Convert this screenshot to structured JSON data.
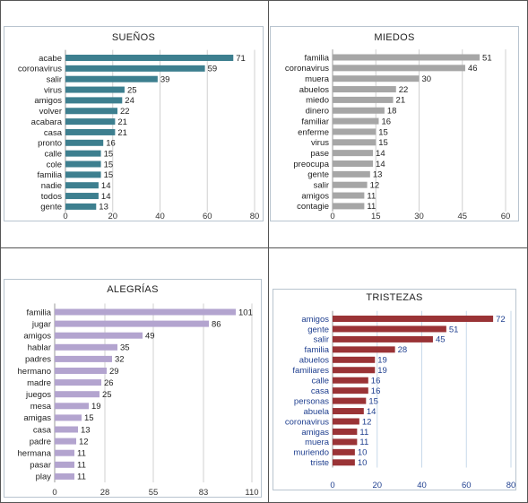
{
  "chart_data": [
    {
      "type": "bar",
      "orientation": "horizontal",
      "title": "SUEÑOS",
      "color": "#3d7f8f",
      "categories": [
        "acabe",
        "coronavirus",
        "salir",
        "virus",
        "amigos",
        "volver",
        "acabara",
        "casa",
        "pronto",
        "calle",
        "cole",
        "familia",
        "nadie",
        "todos",
        "gente"
      ],
      "values": [
        71,
        59,
        39,
        25,
        24,
        22,
        21,
        21,
        16,
        15,
        15,
        15,
        14,
        14,
        13
      ],
      "xlim": [
        0,
        80
      ],
      "ticks": [
        0,
        20,
        40,
        60,
        80
      ],
      "grid": true
    },
    {
      "type": "bar",
      "orientation": "horizontal",
      "title": "MIEDOS",
      "color": "#a6a6a6",
      "categories": [
        "familia",
        "coronavirus",
        "muera",
        "abuelos",
        "miedo",
        "dinero",
        "familiar",
        "enferme",
        "virus",
        "pase",
        "preocupa",
        "gente",
        "salir",
        "amigos",
        "contagie"
      ],
      "values": [
        51,
        46,
        30,
        22,
        21,
        18,
        16,
        15,
        15,
        14,
        14,
        13,
        12,
        11,
        11
      ],
      "xlim": [
        0,
        60
      ],
      "ticks": [
        0,
        15,
        30,
        45,
        60
      ],
      "grid": true
    },
    {
      "type": "bar",
      "orientation": "horizontal",
      "title": "ALEGRÍAS",
      "color": "#b3a4cf",
      "categories": [
        "familia",
        "jugar",
        "amigos",
        "hablar",
        "padres",
        "hermano",
        "madre",
        "juegos",
        "mesa",
        "amigas",
        "casa",
        "padre",
        "hermana",
        "pasar",
        "play"
      ],
      "values": [
        101,
        86,
        49,
        35,
        32,
        29,
        26,
        25,
        19,
        15,
        13,
        12,
        11,
        11,
        11
      ],
      "xlim": [
        0,
        110
      ],
      "ticks": [
        0,
        28,
        55,
        83,
        110
      ],
      "grid": true
    },
    {
      "type": "bar",
      "orientation": "horizontal",
      "title": "TRISTEZAS",
      "color": "#9a3336",
      "categories": [
        "amigos",
        "gente",
        "salir",
        "familia",
        "abuelos",
        "familiares",
        "calle",
        "casa",
        "personas",
        "abuela",
        "coronavirus",
        "amigas",
        "muera",
        "muriendo",
        "triste"
      ],
      "values": [
        72,
        51,
        45,
        28,
        19,
        19,
        16,
        16,
        15,
        14,
        12,
        11,
        11,
        10,
        10
      ],
      "xlim": [
        0,
        80
      ],
      "ticks": [
        0,
        20,
        40,
        60,
        80
      ],
      "grid": true
    }
  ]
}
